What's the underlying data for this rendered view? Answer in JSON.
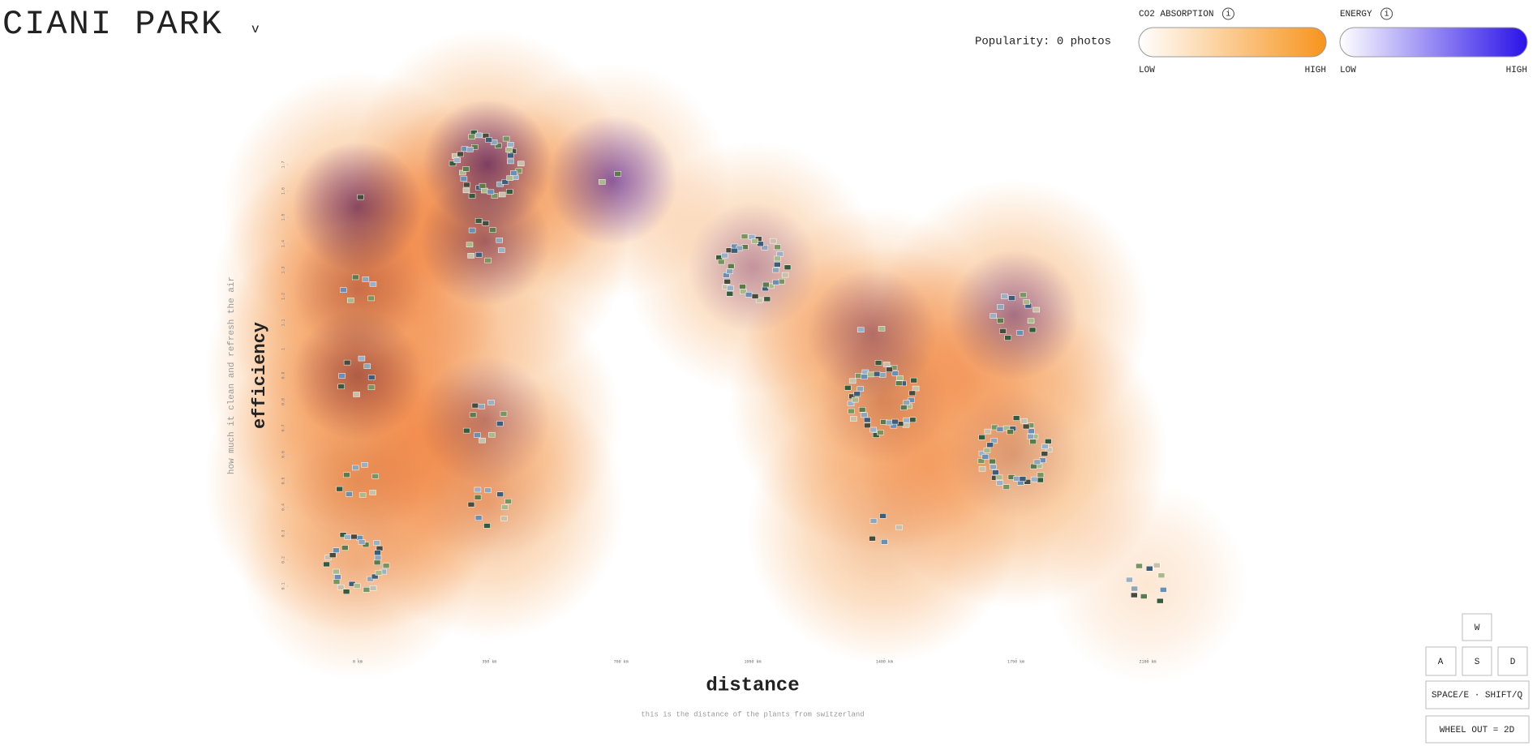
{
  "page": {
    "title": "CIANI PARK",
    "dropdown": "v",
    "popularity": "Popularity: 0 photos",
    "legends": [
      {
        "title": "CO2 ABSORPTION",
        "info": "i",
        "low": "LOW",
        "high": "HIGH",
        "colors": [
          "#ffffff",
          "#f7941d"
        ]
      },
      {
        "title": "ENERGY",
        "info": "i",
        "low": "LOW",
        "high": "HIGH",
        "colors": [
          "#ffffff",
          "#2a12e8"
        ]
      }
    ],
    "keys": {
      "w": "W",
      "a": "A",
      "s": "S",
      "d": "D",
      "move": "SPACE/E · SHIFT/Q",
      "zoom": "WHEEL OUT = 2D"
    }
  },
  "chart_data": {
    "type": "scatter",
    "x_label": "distance",
    "x_sublabel": "this is the distance of the plants from switzerland",
    "y_label": "efficiency",
    "y_sublabel": "how much it clean and refresh the air",
    "x": [
      0,
      345,
      339,
      677,
      1050,
      0,
      0,
      0,
      339,
      0,
      349,
      1395,
      1745,
      1745,
      1395,
      2100,
      1368
    ],
    "y": [
      0.19,
      1.7,
      1.41,
      1.64,
      1.31,
      1.54,
      1.23,
      0.9,
      0.73,
      0.5,
      0.41,
      0.81,
      1.13,
      0.6,
      0.32,
      0.11,
      1.06
    ],
    "co2": [
      0.5,
      0.7,
      0.8,
      0.5,
      0.6,
      0.7,
      0.8,
      0.9,
      0.7,
      0.9,
      0.7,
      0.9,
      0.7,
      0.9,
      0.7,
      0.3,
      0.6
    ],
    "energy": [
      0.05,
      0.9,
      0.6,
      0.8,
      0.4,
      0.8,
      0.3,
      0.5,
      0.4,
      0.1,
      0.1,
      0.2,
      0.6,
      0.2,
      0.05,
      0,
      0.5
    ],
    "photos": [
      30,
      40,
      10,
      2,
      40,
      1,
      6,
      8,
      10,
      8,
      10,
      45,
      14,
      45,
      5,
      10,
      2
    ],
    "co2_color": "#f59a45",
    "energy_color": "#5b2bd6",
    "xlim": [
      0,
      2100
    ],
    "ylim": [
      0.1,
      1.7
    ],
    "xticks": [
      {
        "value": 0,
        "label": "0 km"
      },
      {
        "value": 350,
        "label": "350 km"
      },
      {
        "value": 700,
        "label": "700 km"
      },
      {
        "value": 1050,
        "label": "1050 km"
      },
      {
        "value": 1400,
        "label": "1400 km"
      },
      {
        "value": 1750,
        "label": "1750 km"
      },
      {
        "value": 2100,
        "label": "2100 km"
      }
    ],
    "yticks": [
      0.1,
      0.2,
      0.3,
      0.4,
      0.5,
      0.6,
      0.7,
      0.8,
      0.9,
      1,
      1.1,
      1.2,
      1.3,
      1.4,
      1.5,
      1.6,
      1.7
    ]
  }
}
